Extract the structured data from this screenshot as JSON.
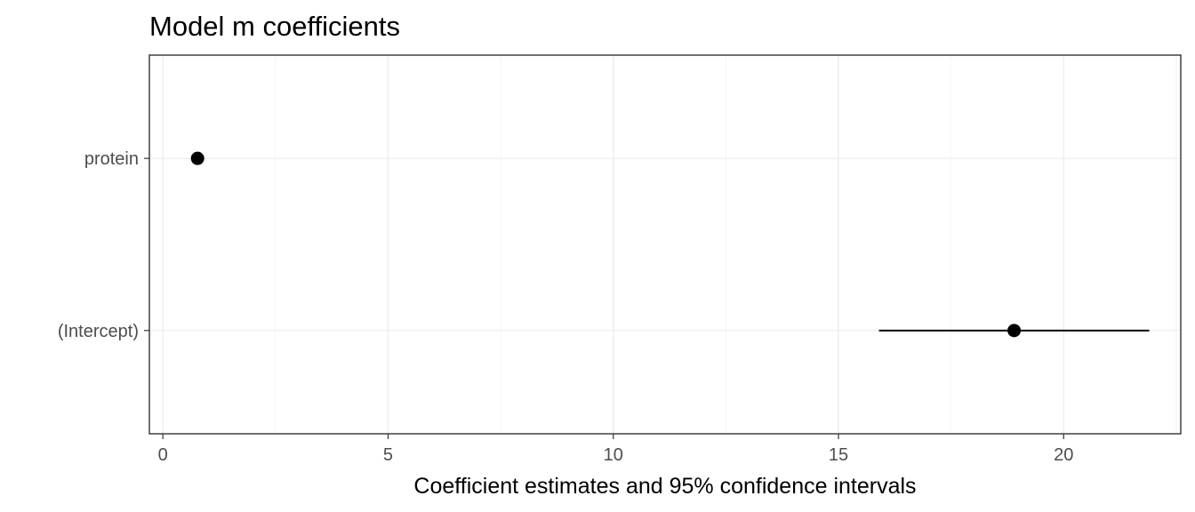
{
  "chart_data": {
    "type": "scatter",
    "title": "Model m coefficients",
    "xlabel": "Coefficient estimates and 95% confidence intervals",
    "ylabel": "",
    "xlim": [
      -0.3,
      22.6
    ],
    "x_ticks": [
      0,
      5,
      10,
      15,
      20
    ],
    "x_tick_labels": [
      "0",
      "5",
      "10",
      "15",
      "20"
    ],
    "x_minor_ticks": [
      2.5,
      7.5,
      12.5,
      17.5,
      22.5
    ],
    "categories": [
      "protein",
      "(Intercept)"
    ],
    "points": [
      {
        "term": "protein",
        "estimate": 0.77,
        "conf_low": 0.7,
        "conf_high": 0.84
      },
      {
        "term": "(Intercept)",
        "estimate": 18.9,
        "conf_low": 15.9,
        "conf_high": 21.9
      }
    ],
    "grid": true,
    "legend": "none"
  }
}
